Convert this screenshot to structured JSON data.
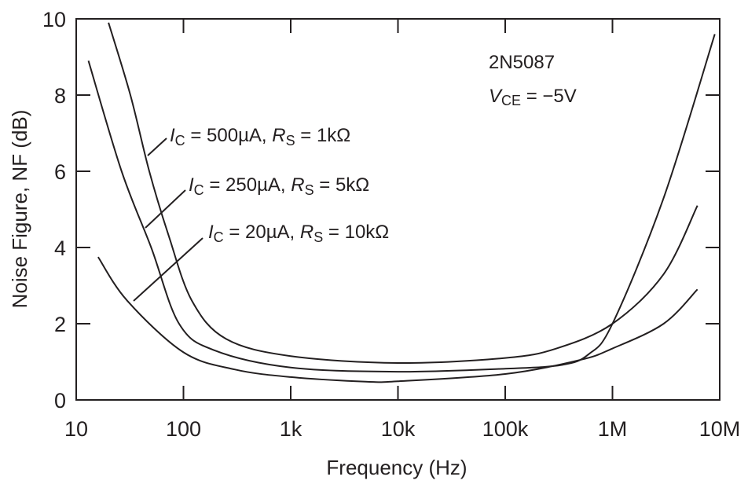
{
  "chart_data": {
    "type": "line",
    "title": "",
    "xlabel": "Frequency (Hz)",
    "ylabel": "Noise Figure, NF (dB)",
    "xscale": "log",
    "xlim": [
      10,
      10000000
    ],
    "ylim": [
      0,
      10
    ],
    "x_ticks": [
      10,
      100,
      1000,
      10000,
      100000,
      1000000,
      10000000
    ],
    "x_tick_labels": [
      "10",
      "100",
      "1k",
      "10k",
      "100k",
      "1M",
      "10M"
    ],
    "y_ticks": [
      0,
      2,
      4,
      6,
      8,
      10
    ],
    "y_tick_labels": [
      "0",
      "2",
      "4",
      "6",
      "8",
      "10"
    ],
    "grid": false,
    "annotations": {
      "device": "2N5087",
      "vce_symbol": "V",
      "vce_sub": "CE",
      "vce_value": " = −5V"
    },
    "series": [
      {
        "name": "IC = 500µA, Rs = 1kΩ",
        "label_ic": " = 500µA, ",
        "label_rs": " = 1kΩ",
        "x": [
          20,
          32,
          48,
          73,
          120,
          250,
          1000,
          10000,
          100000,
          300000,
          1000000,
          3000000,
          6200000
        ],
        "y": [
          9.9,
          8.0,
          6.0,
          4.3,
          2.6,
          1.6,
          1.15,
          0.97,
          1.1,
          1.35,
          2.0,
          3.3,
          5.1
        ]
      },
      {
        "name": "IC = 250µA, Rs = 5kΩ",
        "label_ic": " = 250µA, ",
        "label_rs": " = 5kΩ",
        "x": [
          13,
          26.5,
          50,
          91,
          195,
          1000,
          10000,
          100000,
          340000,
          600000,
          1000000,
          3000000,
          9000000
        ],
        "y": [
          8.9,
          6.0,
          4.0,
          2.0,
          1.3,
          0.85,
          0.74,
          0.82,
          0.92,
          1.2,
          2.0,
          5.3,
          9.6
        ]
      },
      {
        "name": "IC = 20µA, Rs = 10kΩ",
        "label_ic": " = 20µA, ",
        "label_rs": " = 10kΩ",
        "x": [
          16,
          30,
          100,
          300,
          1000,
          5000,
          10000,
          100000,
          500000,
          1000000,
          3000000,
          6200000
        ],
        "y": [
          3.75,
          2.6,
          1.25,
          0.8,
          0.6,
          0.48,
          0.49,
          0.68,
          1.05,
          1.35,
          2.0,
          2.9
        ]
      }
    ],
    "label_symbols": {
      "i": "I",
      "i_sub": "C",
      "r": "R",
      "r_sub": "S"
    }
  }
}
